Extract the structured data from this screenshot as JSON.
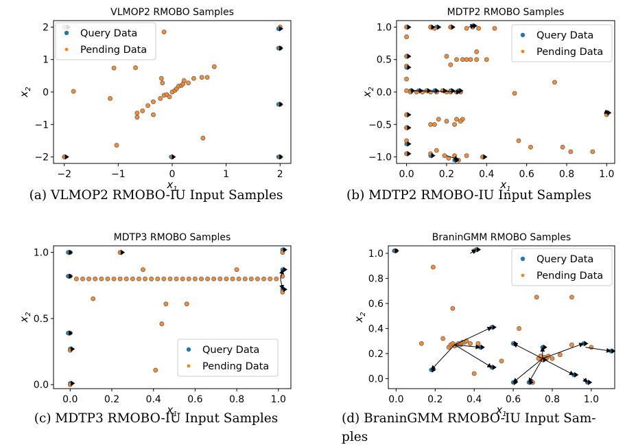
{
  "captions": [
    "(a)  VLMOP2 RMOBO-IU Input Samples",
    "(b)  MDTP2 RMOBO-IU Input Samples",
    "(c)  MDTP3 RMOBO-IU Input Samples",
    "(d)  BraninGMM  RMOBO-IU  Input  Sam-",
    "ples"
  ],
  "colors": {
    "query": "#1f77b4",
    "pending": "#ff7f0e",
    "arrow": "#000000",
    "marker_outline": "#6b6b6b"
  },
  "chart_data": [
    {
      "type": "scatter",
      "title": "VLMOP2 RMOBO Samples",
      "xlabel": "x1",
      "ylabel": "x2",
      "xlim": [
        -2.2,
        2.2
      ],
      "ylim": [
        -2.2,
        2.2
      ],
      "xticks": [
        -2,
        -1,
        0,
        1,
        2
      ],
      "yticks": [
        -2,
        -1,
        0,
        1,
        2
      ],
      "legend": {
        "position": "upper-left",
        "entries": [
          "Query Data",
          "Pending Data"
        ]
      },
      "points": [
        [
          -2,
          2
        ],
        [
          -1.83,
          0.02
        ],
        [
          -1.15,
          -0.2
        ],
        [
          -1.08,
          0.74
        ],
        [
          -1.03,
          -1.64
        ],
        [
          -0.68,
          0.75
        ],
        [
          -0.65,
          -0.65
        ],
        [
          -0.65,
          -0.78
        ],
        [
          -0.55,
          -0.58
        ],
        [
          -0.45,
          -0.42
        ],
        [
          -0.35,
          -0.7
        ],
        [
          -0.35,
          -0.3
        ],
        [
          -0.22,
          -0.2
        ],
        [
          -0.2,
          0.42
        ],
        [
          -0.18,
          0.28
        ],
        [
          -0.15,
          -0.1
        ],
        [
          -0.1,
          -0.08
        ],
        [
          -0.05,
          -0.15
        ],
        [
          0,
          0
        ],
        [
          0.05,
          0.05
        ],
        [
          0.08,
          0.1
        ],
        [
          0.12,
          0.18
        ],
        [
          0.17,
          0.2
        ],
        [
          0.2,
          0.25
        ],
        [
          0.22,
          0.35
        ],
        [
          0.3,
          0.28
        ],
        [
          0.4,
          0.42
        ],
        [
          0.55,
          0.45
        ],
        [
          0.65,
          0.45
        ],
        [
          0.78,
          0.78
        ],
        [
          -0.15,
          1.85
        ],
        [
          0.57,
          -1.42
        ],
        [
          -2,
          -2
        ],
        [
          0,
          -2
        ],
        [
          2,
          2
        ],
        [
          2,
          1.35
        ],
        [
          2,
          -0.38
        ],
        [
          2,
          -2
        ]
      ],
      "query_points": [
        [
          -1.97,
          2
        ],
        [
          -2,
          -2
        ],
        [
          -0.02,
          -2
        ],
        [
          1.97,
          1.95
        ],
        [
          1.97,
          1.35
        ],
        [
          1.97,
          -0.38
        ],
        [
          1.97,
          -2
        ]
      ],
      "arrows": []
    },
    {
      "type": "scatter",
      "title": "MDTP2 RMOBO Samples",
      "xlabel": "x1",
      "ylabel": "x2",
      "xlim": [
        -0.05,
        1.04
      ],
      "ylim": [
        -1.1,
        1.1
      ],
      "xticks": [
        0.0,
        0.2,
        0.4,
        0.6,
        0.8,
        1.0
      ],
      "yticks": [
        -1.0,
        -0.5,
        0.0,
        0.5,
        1.0
      ],
      "legend": {
        "position": "upper-right",
        "entries": [
          "Query Data",
          "Pending Data"
        ]
      },
      "points": [
        [
          0,
          1
        ],
        [
          0,
          0.85
        ],
        [
          0,
          0.55
        ],
        [
          0,
          0.4
        ],
        [
          0,
          0.2
        ],
        [
          0,
          0.02
        ],
        [
          0,
          -0.35
        ],
        [
          0,
          -0.55
        ],
        [
          0,
          -0.75
        ],
        [
          0,
          -0.95
        ],
        [
          0.02,
          0
        ],
        [
          0.05,
          0
        ],
        [
          0.08,
          0
        ],
        [
          0.1,
          0.02
        ],
        [
          0.12,
          0
        ],
        [
          0.15,
          0
        ],
        [
          0.18,
          0.02
        ],
        [
          0.2,
          0
        ],
        [
          0.22,
          0
        ],
        [
          0.25,
          0
        ],
        [
          0.27,
          0
        ],
        [
          0.12,
          -0.5
        ],
        [
          0.14,
          -0.5
        ],
        [
          0.16,
          -0.42
        ],
        [
          0.2,
          -0.45
        ],
        [
          0.25,
          -0.42
        ],
        [
          0.28,
          -0.42
        ],
        [
          0.24,
          -0.5
        ],
        [
          0.27,
          -0.45
        ],
        [
          0.2,
          0.55
        ],
        [
          0.22,
          0.42
        ],
        [
          0.25,
          0.5
        ],
        [
          0.28,
          0.5
        ],
        [
          0.3,
          0.5
        ],
        [
          0.32,
          0.5
        ],
        [
          0.35,
          0.5
        ],
        [
          0.15,
          -0.9
        ],
        [
          0.19,
          -0.98
        ],
        [
          0.21,
          -1.02
        ],
        [
          0.24,
          -0.98
        ],
        [
          0.3,
          -0.98
        ],
        [
          0.33,
          1
        ],
        [
          0.3,
          0.98
        ],
        [
          0.36,
          0.98
        ],
        [
          0.44,
          0.98
        ],
        [
          0.12,
          1
        ],
        [
          0.22,
          1
        ],
        [
          0.14,
          0.98
        ],
        [
          0.54,
          -0.02
        ],
        [
          0.56,
          -0.75
        ],
        [
          0.62,
          -0.85
        ],
        [
          0.74,
          0.15
        ],
        [
          0.78,
          -0.85
        ],
        [
          0.82,
          -0.92
        ],
        [
          0.93,
          -0.92
        ],
        [
          1,
          -0.35
        ],
        [
          0.35,
          0.62
        ],
        [
          0.4,
          0.5
        ],
        [
          0.12,
          -0.95
        ],
        [
          0.38,
          -1
        ],
        [
          0.26,
          -1.05
        ]
      ],
      "query_points": [
        [
          0,
          1
        ],
        [
          0,
          0.55
        ],
        [
          0,
          0.38
        ],
        [
          0,
          -0.35
        ],
        [
          0,
          -0.55
        ],
        [
          0,
          -0.8
        ],
        [
          0,
          -0.95
        ],
        [
          0.02,
          0.02
        ],
        [
          0.06,
          0.02
        ],
        [
          0.1,
          0.02
        ],
        [
          0.14,
          0.02
        ],
        [
          0.18,
          0.02
        ],
        [
          0.22,
          0.02
        ],
        [
          0.26,
          0.02
        ],
        [
          0.12,
          1
        ],
        [
          0.15,
          1
        ],
        [
          0.22,
          1
        ],
        [
          0.33,
          1.02
        ],
        [
          0.12,
          -0.98
        ],
        [
          0.24,
          -1.05
        ],
        [
          0.38,
          -1
        ],
        [
          1,
          -0.32
        ]
      ],
      "arrows": [
        [
          0.02,
          0.02,
          0.27,
          0
        ],
        [
          0.2,
          -0.98,
          0.26,
          -1.04
        ],
        [
          0.99,
          -0.3,
          1.01,
          -0.33
        ],
        [
          0.31,
          1.0,
          0.34,
          1.03
        ]
      ]
    },
    {
      "type": "scatter",
      "title": "MDTP3 RMOBO Samples",
      "xlabel": "x1",
      "ylabel": "x2",
      "xlim": [
        -0.08,
        1.06
      ],
      "ylim": [
        -0.03,
        1.05
      ],
      "xticks": [
        0.0,
        0.2,
        0.4,
        0.6,
        0.8,
        1.0
      ],
      "yticks": [
        0.0,
        0.5,
        1.0
      ],
      "legend": {
        "position": "lower-right",
        "entries": [
          "Query Data",
          "Pending Data"
        ]
      },
      "points": [
        [
          0,
          1
        ],
        [
          0,
          0.82
        ],
        [
          0,
          0.39
        ],
        [
          0,
          0.26
        ],
        [
          0,
          0
        ],
        [
          0.03,
          0.8
        ],
        [
          0.06,
          0.8
        ],
        [
          0.09,
          0.8
        ],
        [
          0.11,
          0.65
        ],
        [
          0.12,
          0.8
        ],
        [
          0.15,
          0.8
        ],
        [
          0.18,
          0.8
        ],
        [
          0.21,
          0.8
        ],
        [
          0.24,
          0.8
        ],
        [
          0.24,
          1
        ],
        [
          0.27,
          0.8
        ],
        [
          0.3,
          0.8
        ],
        [
          0.33,
          0.8
        ],
        [
          0.35,
          0.87
        ],
        [
          0.36,
          0.8
        ],
        [
          0.39,
          0.8
        ],
        [
          0.41,
          0.11
        ],
        [
          0.42,
          0.8
        ],
        [
          0.44,
          0.46
        ],
        [
          0.45,
          0.8
        ],
        [
          0.46,
          0.61
        ],
        [
          0.48,
          0.8
        ],
        [
          0.51,
          0.8
        ],
        [
          0.54,
          0.8
        ],
        [
          0.56,
          0.61
        ],
        [
          0.57,
          0.8
        ],
        [
          0.6,
          0.8
        ],
        [
          0.63,
          0.8
        ],
        [
          0.66,
          0.8
        ],
        [
          0.69,
          0.8
        ],
        [
          0.72,
          0.8
        ],
        [
          0.75,
          0.8
        ],
        [
          0.78,
          0.8
        ],
        [
          0.8,
          0.87
        ],
        [
          0.81,
          0.8
        ],
        [
          0.84,
          0.8
        ],
        [
          0.87,
          0.8
        ],
        [
          0.9,
          0.8
        ],
        [
          0.93,
          0.8
        ],
        [
          0.96,
          0.8
        ],
        [
          0.99,
          0.8
        ],
        [
          1.02,
          1
        ],
        [
          1.02,
          0.82
        ],
        [
          1.02,
          0.7
        ]
      ],
      "query_points": [
        [
          -0.01,
          1
        ],
        [
          -0.01,
          0.82
        ],
        [
          -0.01,
          0.39
        ],
        [
          0,
          0.27
        ],
        [
          0,
          0.01
        ],
        [
          0.24,
          1
        ],
        [
          1.02,
          1.02
        ],
        [
          1.02,
          0.87
        ],
        [
          1.02,
          0.72
        ]
      ],
      "arrows": [
        [
          1.01,
          0.8,
          1.02,
          0.87
        ],
        [
          1.01,
          0.8,
          1.02,
          0.72
        ]
      ]
    },
    {
      "type": "scatter",
      "title": "BraninGMM RMOBO Samples",
      "xlabel": "x1",
      "ylabel": "x2",
      "xlim": [
        -0.04,
        1.12
      ],
      "ylim": [
        -0.08,
        1.06
      ],
      "xticks": [
        0.0,
        0.2,
        0.4,
        0.6,
        0.8,
        1.0
      ],
      "yticks": [
        0.0,
        0.2,
        0.4,
        0.6,
        0.8,
        1.0
      ],
      "legend": {
        "position": "upper-right",
        "entries": [
          "Query Data",
          "Pending Data"
        ]
      },
      "points": [
        [
          0,
          1.02
        ],
        [
          0.19,
          0.89
        ],
        [
          0.29,
          0.56
        ],
        [
          0.13,
          0.28
        ],
        [
          0.24,
          0.32
        ],
        [
          0.27,
          0.25
        ],
        [
          0.28,
          0.27
        ],
        [
          0.29,
          0.28
        ],
        [
          0.3,
          0.26
        ],
        [
          0.31,
          0.27
        ],
        [
          0.32,
          0.28
        ],
        [
          0.33,
          0.27
        ],
        [
          0.34,
          0.29
        ],
        [
          0.35,
          0.29
        ],
        [
          0.36,
          0.3
        ],
        [
          0.38,
          0.28
        ],
        [
          0.4,
          0.04
        ],
        [
          0.42,
          0.28
        ],
        [
          0.54,
          0.14
        ],
        [
          0.63,
          0.4
        ],
        [
          0.72,
          0.65
        ],
        [
          0.73,
          0.16
        ],
        [
          0.74,
          0.18
        ],
        [
          0.75,
          0.15
        ],
        [
          0.76,
          0.17
        ],
        [
          0.77,
          0.16
        ],
        [
          0.78,
          0.18
        ],
        [
          0.8,
          0.16
        ],
        [
          0.82,
          0.82
        ],
        [
          0.84,
          0.19
        ],
        [
          0.9,
          0.65
        ],
        [
          0.7,
          -0.03
        ],
        [
          0.9,
          0.27
        ],
        [
          1.0,
          0.25
        ],
        [
          0.4,
          1.02
        ]
      ],
      "query_points": [
        [
          -0.01,
          1.02
        ],
        [
          0.41,
          1.03
        ],
        [
          0.18,
          0.07
        ],
        [
          0.49,
          0.41
        ],
        [
          0.49,
          0.09
        ],
        [
          0.43,
          0.25
        ],
        [
          0.6,
          0.28
        ],
        [
          0.6,
          -0.03
        ],
        [
          0.68,
          -0.03
        ],
        [
          0.75,
          0.25
        ],
        [
          0.91,
          0.03
        ],
        [
          0.96,
          0.28
        ],
        [
          0.98,
          -0.03
        ],
        [
          1.1,
          0.22
        ],
        [
          0.75,
          0.15
        ]
      ],
      "arrows": [
        [
          0.3,
          0.27,
          0.18,
          0.07
        ],
        [
          0.3,
          0.27,
          0.49,
          0.41
        ],
        [
          0.3,
          0.27,
          0.49,
          0.09
        ],
        [
          0.3,
          0.27,
          0.43,
          0.25
        ],
        [
          0.75,
          0.16,
          0.6,
          0.28
        ],
        [
          0.75,
          0.16,
          0.6,
          -0.03
        ],
        [
          0.75,
          0.16,
          0.68,
          -0.03
        ],
        [
          0.75,
          0.16,
          0.75,
          0.25
        ],
        [
          0.75,
          0.16,
          0.91,
          0.03
        ],
        [
          0.75,
          0.16,
          0.96,
          0.28
        ],
        [
          0.97,
          0.25,
          1.1,
          0.22
        ],
        [
          0.96,
          0.0,
          0.98,
          -0.03
        ],
        [
          0.38,
          1.0,
          0.41,
          1.03
        ]
      ]
    }
  ]
}
